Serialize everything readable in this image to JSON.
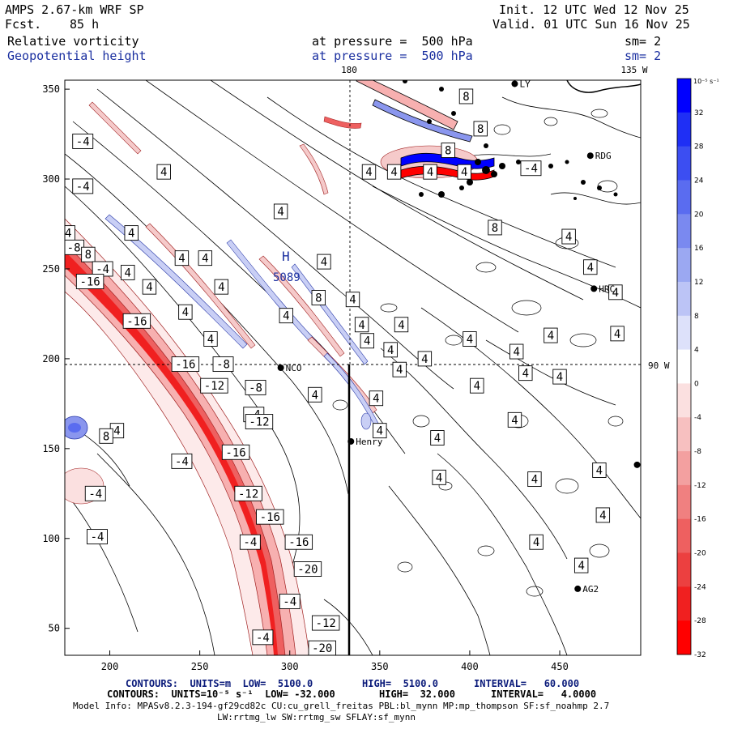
{
  "header": {
    "model": "AMPS 2.67-km WRF SP",
    "fcst_label": "Fcst.",
    "fcst_value": "85 h",
    "init": "Init. 12 UTC Wed 12 Nov 25",
    "valid": "Valid. 01 UTC Sun 16 Nov 25",
    "field1": "Relative vorticity",
    "field1_level": "at pressure =  500 hPa",
    "field1_sm": "sm= 2",
    "field2": "Geopotential height",
    "field2_level": "at pressure =  500 hPa",
    "field2_sm": "sm= 2"
  },
  "map": {
    "meridian_top_label": "180",
    "meridian_135_label": "135 W",
    "meridian_90_label": "90 W",
    "x_ticks": [
      200,
      250,
      300,
      350,
      400,
      450
    ],
    "y_ticks": [
      50,
      100,
      150,
      200,
      250,
      300,
      350
    ],
    "x_range": [
      175,
      495
    ],
    "y_range": [
      35,
      355
    ],
    "high_marker": {
      "letter": "H",
      "value": "5089"
    },
    "stations": [
      {
        "name": "LY",
        "x": 425,
        "y": 353
      },
      {
        "name": "RDG",
        "x": 467,
        "y": 313
      },
      {
        "name": "HRC",
        "x": 469,
        "y": 239
      },
      {
        "name": "NCO",
        "x": 295,
        "y": 195
      },
      {
        "name": "Henry",
        "x": 334,
        "y": 154
      },
      {
        "name": "AG2",
        "x": 460,
        "y": 72
      },
      {
        "name": "",
        "x": 493,
        "y": 141
      }
    ],
    "contour_labels": [
      {
        "text": "-4",
        "x": 185,
        "y": 321
      },
      {
        "text": "4",
        "x": 168,
        "y": 304
      },
      {
        "text": "-4",
        "x": 185,
        "y": 296
      },
      {
        "text": "-4",
        "x": 175,
        "y": 270
      },
      {
        "text": "4",
        "x": 212,
        "y": 270
      },
      {
        "text": "4",
        "x": 230,
        "y": 304
      },
      {
        "text": "4",
        "x": 240,
        "y": 256
      },
      {
        "text": "4",
        "x": 253,
        "y": 256
      },
      {
        "text": "-8",
        "x": 180,
        "y": 262
      },
      {
        "text": "8",
        "x": 188,
        "y": 258
      },
      {
        "text": "-4",
        "x": 196,
        "y": 250
      },
      {
        "text": "4",
        "x": 210,
        "y": 248
      },
      {
        "text": "-16",
        "x": 189,
        "y": 243
      },
      {
        "text": "4",
        "x": 222,
        "y": 240
      },
      {
        "text": "4",
        "x": 262,
        "y": 240
      },
      {
        "text": "-16",
        "x": 215,
        "y": 221
      },
      {
        "text": "4",
        "x": 242,
        "y": 226
      },
      {
        "text": "4",
        "x": 256,
        "y": 211
      },
      {
        "text": "-16",
        "x": 242,
        "y": 197
      },
      {
        "text": "-8",
        "x": 263,
        "y": 197
      },
      {
        "text": "-12",
        "x": 258,
        "y": 185
      },
      {
        "text": "-8",
        "x": 281,
        "y": 184
      },
      {
        "text": "4",
        "x": 295,
        "y": 282
      },
      {
        "text": "4",
        "x": 319,
        "y": 254
      },
      {
        "text": "4",
        "x": 344,
        "y": 304
      },
      {
        "text": "4",
        "x": 358,
        "y": 304
      },
      {
        "text": "4",
        "x": 397,
        "y": 304
      },
      {
        "text": "4",
        "x": 378,
        "y": 304
      },
      {
        "text": "8",
        "x": 388,
        "y": 316
      },
      {
        "text": "8",
        "x": 398,
        "y": 346
      },
      {
        "text": "8",
        "x": 406,
        "y": 328
      },
      {
        "text": "8",
        "x": 414,
        "y": 273
      },
      {
        "text": "-4",
        "x": 434,
        "y": 306
      },
      {
        "text": "4",
        "x": 455,
        "y": 268
      },
      {
        "text": "4",
        "x": 467,
        "y": 251
      },
      {
        "text": "4",
        "x": 481,
        "y": 237
      },
      {
        "text": "4",
        "x": 340,
        "y": 219
      },
      {
        "text": "4",
        "x": 343,
        "y": 210
      },
      {
        "text": "4",
        "x": 356,
        "y": 205
      },
      {
        "text": "4",
        "x": 361,
        "y": 194
      },
      {
        "text": "4",
        "x": 375,
        "y": 200
      },
      {
        "text": "4",
        "x": 362,
        "y": 219
      },
      {
        "text": "8",
        "x": 316,
        "y": 234
      },
      {
        "text": "4",
        "x": 335,
        "y": 233
      },
      {
        "text": "4",
        "x": 400,
        "y": 211
      },
      {
        "text": "4",
        "x": 426,
        "y": 204
      },
      {
        "text": "4",
        "x": 445,
        "y": 213
      },
      {
        "text": "4",
        "x": 431,
        "y": 192
      },
      {
        "text": "4",
        "x": 382,
        "y": 156
      },
      {
        "text": "4",
        "x": 404,
        "y": 185
      },
      {
        "text": "4",
        "x": 425,
        "y": 166
      },
      {
        "text": "4",
        "x": 348,
        "y": 178
      },
      {
        "text": "4",
        "x": 350,
        "y": 160
      },
      {
        "text": "4",
        "x": 383,
        "y": 134
      },
      {
        "text": "4",
        "x": 436,
        "y": 133
      },
      {
        "text": "4",
        "x": 437,
        "y": 98
      },
      {
        "text": "4",
        "x": 450,
        "y": 190
      },
      {
        "text": "4",
        "x": 482,
        "y": 214
      },
      {
        "text": "4",
        "x": 314,
        "y": 180
      },
      {
        "text": "4",
        "x": 298,
        "y": 224
      },
      {
        "text": "-4",
        "x": 280,
        "y": 169
      },
      {
        "text": "-12",
        "x": 283,
        "y": 165
      },
      {
        "text": "-16",
        "x": 270,
        "y": 148
      },
      {
        "text": "-4",
        "x": 240,
        "y": 143
      },
      {
        "text": "4",
        "x": 204,
        "y": 160
      },
      {
        "text": "8",
        "x": 198,
        "y": 157
      },
      {
        "text": "-4",
        "x": 192,
        "y": 125
      },
      {
        "text": "-12",
        "x": 277,
        "y": 125
      },
      {
        "text": "-16",
        "x": 289,
        "y": 112
      },
      {
        "text": "-4",
        "x": 278,
        "y": 98
      },
      {
        "text": "-16",
        "x": 305,
        "y": 98
      },
      {
        "text": "-20",
        "x": 310,
        "y": 83
      },
      {
        "text": "-4",
        "x": 300,
        "y": 65
      },
      {
        "text": "-12",
        "x": 320,
        "y": 53
      },
      {
        "text": "-4",
        "x": 285,
        "y": 45
      },
      {
        "text": "-20",
        "x": 318,
        "y": 39
      },
      {
        "text": "-4",
        "x": 193,
        "y": 101
      },
      {
        "text": "4",
        "x": 472,
        "y": 138
      },
      {
        "text": "4",
        "x": 474,
        "y": 113
      },
      {
        "text": "4",
        "x": 462,
        "y": 85
      }
    ]
  },
  "colorbar": {
    "unit_label": "10⁻⁵ s⁻¹",
    "levels": [
      "32",
      "28",
      "24",
      "20",
      "16",
      "12",
      "8",
      "4",
      "0",
      "-4",
      "-8",
      "-12",
      "-16",
      "-20",
      "-24",
      "-28",
      "-32"
    ],
    "colors_top_to_bottom": [
      "#0000ff",
      "#1f2ff5",
      "#3c4ef2",
      "#5a6cf0",
      "#7a89f0",
      "#9ba8f2",
      "#bcc4f6",
      "#dde1fa",
      "#ffffff",
      "#fbe0e0",
      "#f7c0c0",
      "#f3a0a0",
      "#f08080",
      "#ee6060",
      "#ec4040",
      "#f02020",
      "#ff0000"
    ]
  },
  "footer": {
    "line1_a": "CONTOURS:  UNITS=m  LOW=  5100.0",
    "line1_b": "HIGH=  5100.0",
    "line1_c": "INTERVAL=   60.000",
    "line2_a": "CONTOURS:  UNITS=10⁻⁵ s⁻¹  LOW= -32.000",
    "line2_b": "HIGH=  32.000",
    "line2_c": "INTERVAL=   4.0000",
    "line3": "Model Info: MPASv8.2.3-194-gf29cd82c CU:cu_grell_freitas PBL:bl_mynn MP:mp_thompson SF:sf_noahmp 2.7",
    "line4": "LW:rrtmg_lw SW:rrtmg_sw SFLAY:sf_mynn"
  }
}
